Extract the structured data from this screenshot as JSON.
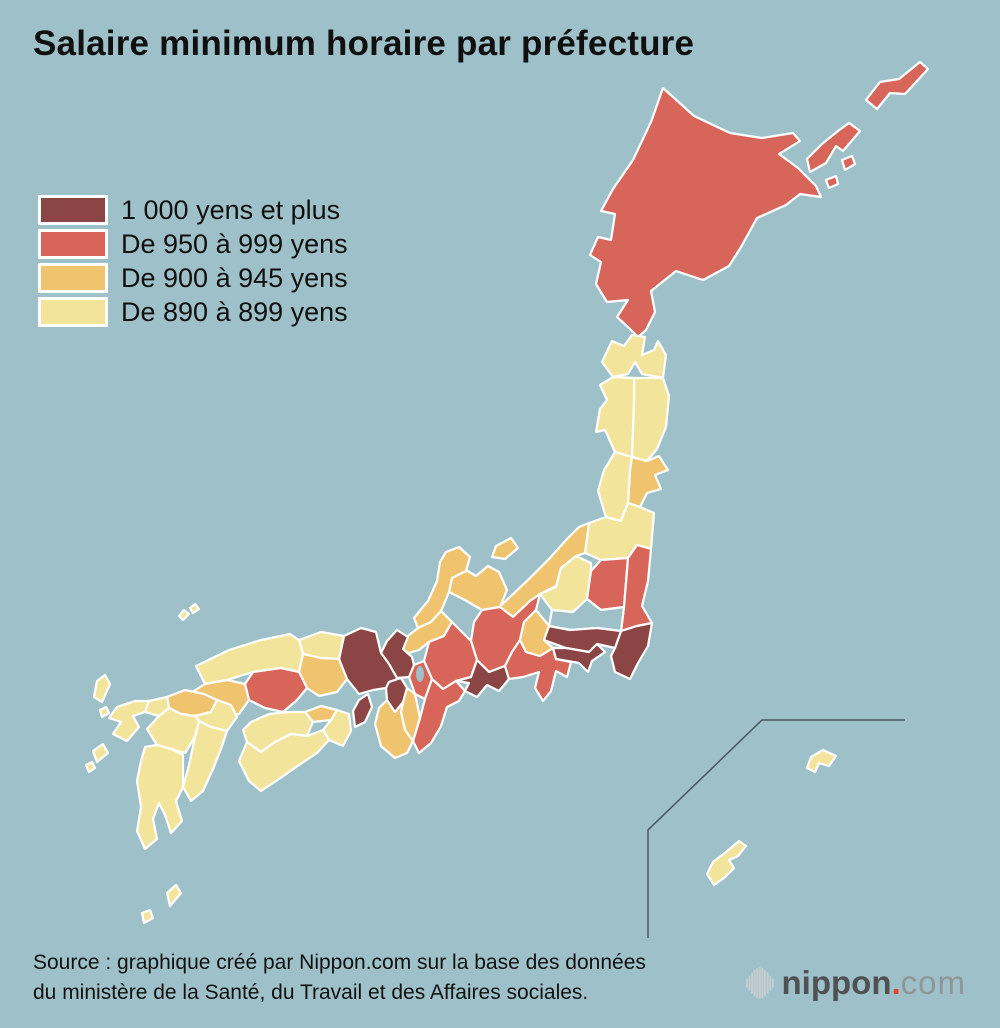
{
  "header": {
    "title": "Salaire minimum horaire par préfecture"
  },
  "source": {
    "line1": "Source : graphique créé par Nippon.com sur la base des données",
    "line2": "du ministère de la Santé, du Travail et des Affaires sociales."
  },
  "logo": {
    "main": "nippon",
    "dot": ".",
    "suffix": "com",
    "icon_color": "#c9cfd0",
    "dot_color": "#e8402f"
  },
  "map": {
    "background_color": "#9ec1c9",
    "border_color": "#ffffff",
    "inset_line_color": "#47565c"
  },
  "chart_data": {
    "type": "choropleth",
    "title": "Salaire minimum horaire par préfecture",
    "legend": [
      {
        "category": "1000_plus",
        "label": "1 000 yens et plus",
        "color": "#8c4545"
      },
      {
        "category": "950_999",
        "label": "De 950 à 999 yens",
        "color": "#d8655a"
      },
      {
        "category": "900_945",
        "label": "De 900 à 945 yens",
        "color": "#f0c46e"
      },
      {
        "category": "890_899",
        "label": "De 890 à 899 yens",
        "color": "#f2e49b"
      }
    ],
    "regions": [
      {
        "id": "hokkaido",
        "name": "Hokkaido",
        "category": "950_999"
      },
      {
        "id": "aomori",
        "name": "Aomori",
        "category": "890_899"
      },
      {
        "id": "iwate",
        "name": "Iwate",
        "category": "890_899"
      },
      {
        "id": "akita",
        "name": "Akita",
        "category": "890_899"
      },
      {
        "id": "miyagi",
        "name": "Miyagi",
        "category": "900_945"
      },
      {
        "id": "yamagata",
        "name": "Yamagata",
        "category": "890_899"
      },
      {
        "id": "fukushima",
        "name": "Fukushima",
        "category": "890_899"
      },
      {
        "id": "niigata",
        "name": "Niigata",
        "category": "900_945"
      },
      {
        "id": "toyama",
        "name": "Toyama",
        "category": "900_945"
      },
      {
        "id": "ishikawa",
        "name": "Ishikawa",
        "category": "900_945"
      },
      {
        "id": "fukui",
        "name": "Fukui",
        "category": "900_945"
      },
      {
        "id": "nagano",
        "name": "Nagano",
        "category": "950_999"
      },
      {
        "id": "gifu",
        "name": "Gifu",
        "category": "950_999"
      },
      {
        "id": "shiga",
        "name": "Shiga",
        "category": "950_999"
      },
      {
        "id": "kyoto",
        "name": "Kyoto",
        "category": "1000_plus"
      },
      {
        "id": "hyogo",
        "name": "Hyogo",
        "category": "1000_plus"
      },
      {
        "id": "tottori",
        "name": "Tottori",
        "category": "890_899"
      },
      {
        "id": "shimane",
        "name": "Shimane",
        "category": "890_899"
      },
      {
        "id": "okayama",
        "name": "Okayama",
        "category": "900_945"
      },
      {
        "id": "hiroshima",
        "name": "Hiroshima",
        "category": "950_999"
      },
      {
        "id": "yamaguchi",
        "name": "Yamaguchi",
        "category": "900_945"
      },
      {
        "id": "kagawa",
        "name": "Kagawa",
        "category": "900_945"
      },
      {
        "id": "tokushima",
        "name": "Tokushima",
        "category": "890_899"
      },
      {
        "id": "ehime",
        "name": "Ehime",
        "category": "890_899"
      },
      {
        "id": "kochi",
        "name": "Kochi",
        "category": "890_899"
      },
      {
        "id": "fukuoka",
        "name": "Fukuoka",
        "category": "900_945"
      },
      {
        "id": "saga",
        "name": "Saga",
        "category": "890_899"
      },
      {
        "id": "nagasaki",
        "name": "Nagasaki",
        "category": "890_899"
      },
      {
        "id": "oita",
        "name": "Oita",
        "category": "890_899"
      },
      {
        "id": "kumamoto",
        "name": "Kumamoto",
        "category": "890_899"
      },
      {
        "id": "miyazaki",
        "name": "Miyazaki",
        "category": "890_899"
      },
      {
        "id": "kagoshima",
        "name": "Kagoshima",
        "category": "890_899"
      },
      {
        "id": "okinawa",
        "name": "Okinawa",
        "category": "890_899"
      },
      {
        "id": "mie",
        "name": "Mie",
        "category": "950_999"
      },
      {
        "id": "nara",
        "name": "Nara",
        "category": "900_945"
      },
      {
        "id": "wakayama",
        "name": "Wakayama",
        "category": "900_945"
      },
      {
        "id": "osaka",
        "name": "Osaka",
        "category": "1000_plus"
      },
      {
        "id": "aichi",
        "name": "Aichi",
        "category": "1000_plus"
      },
      {
        "id": "shizuoka",
        "name": "Shizuoka",
        "category": "950_999"
      },
      {
        "id": "yamanashi",
        "name": "Yamanashi",
        "category": "900_945"
      },
      {
        "id": "gunma",
        "name": "Gunma",
        "category": "890_899"
      },
      {
        "id": "tochigi",
        "name": "Tochigi",
        "category": "950_999"
      },
      {
        "id": "ibaraki",
        "name": "Ibaraki",
        "category": "950_999"
      },
      {
        "id": "saitama",
        "name": "Saitama",
        "category": "no_data"
      },
      {
        "id": "chiba",
        "name": "Chiba",
        "category": "1000_plus"
      },
      {
        "id": "tokyo",
        "name": "Tokyo",
        "category": "1000_plus"
      },
      {
        "id": "kanagawa",
        "name": "Kanagawa",
        "category": "1000_plus"
      }
    ]
  }
}
